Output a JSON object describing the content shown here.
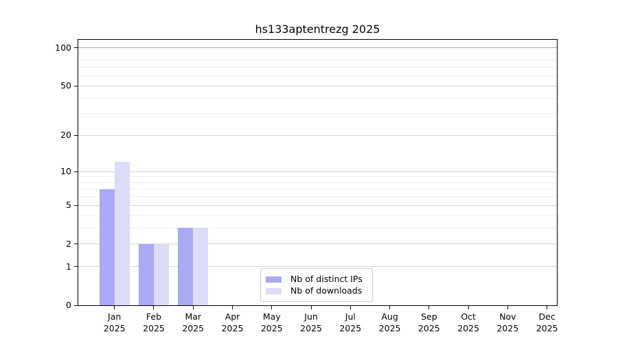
{
  "chart_data": {
    "type": "bar",
    "title": "hs133aptentrezg 2025",
    "year_label": "2025",
    "categories": [
      "Jan",
      "Feb",
      "Mar",
      "Apr",
      "May",
      "Jun",
      "Jul",
      "Aug",
      "Sep",
      "Oct",
      "Nov",
      "Dec"
    ],
    "series": [
      {
        "name": "Nb of distinct IPs",
        "color": "#a9a9f4",
        "values": [
          7,
          2,
          3,
          0,
          0,
          0,
          0,
          0,
          0,
          0,
          0,
          0
        ]
      },
      {
        "name": "Nb of downloads",
        "color": "#dcdcf8",
        "values": [
          12,
          2,
          3,
          0,
          0,
          0,
          0,
          0,
          0,
          0,
          0,
          0
        ]
      }
    ],
    "xlabel": "",
    "ylabel": "",
    "y_axis": {
      "scale": "log1p",
      "ticks": [
        0,
        1,
        2,
        5,
        10,
        20,
        50,
        100
      ],
      "minor_gridlines": [
        3,
        4,
        6,
        7,
        8,
        9,
        30,
        40,
        60,
        70,
        80,
        90
      ],
      "emphasized_gridline": 100
    },
    "ylim": [
      0,
      115
    ],
    "grid": "on",
    "legend_position": "bottom-center-inside",
    "colors": {
      "frame": "#000000",
      "grid_major": "#d4d4d4",
      "grid_minor": "#efefef",
      "grid_emphasized": "#adadad",
      "legend_border": "#cccccc",
      "background": "#ffffff",
      "text": "#000000"
    }
  }
}
